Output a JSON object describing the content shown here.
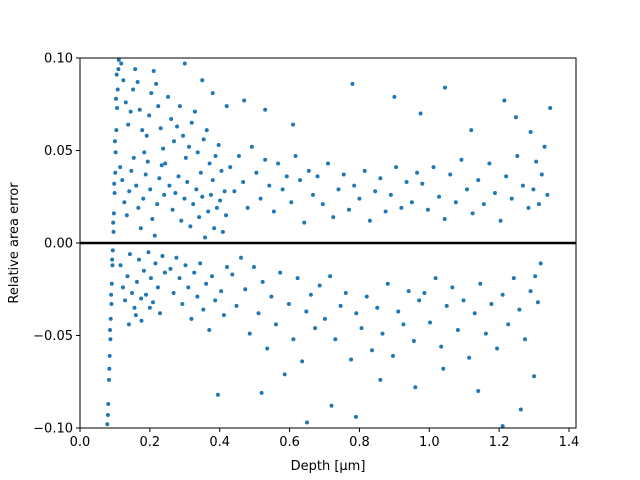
{
  "chart_data": {
    "type": "scatter",
    "xlabel": "Depth [µm]",
    "ylabel": "Relative area error",
    "xlim": [
      0.0,
      1.42
    ],
    "ylim": [
      -0.1,
      0.1
    ],
    "xticks": [
      "0.0",
      "0.2",
      "0.4",
      "0.6",
      "0.8",
      "1.0",
      "1.2",
      "1.4"
    ],
    "yticks": [
      "−0.10",
      "−0.05",
      "0.00",
      "0.05",
      "0.10"
    ],
    "reference_line": {
      "y": 0.0,
      "color": "#000000"
    },
    "point_color": "#1f77b4",
    "grid": false,
    "legend": "none",
    "series": [
      {
        "points": [
          [
            0.078,
            -0.098
          ],
          [
            0.081,
            -0.087
          ],
          [
            0.083,
            -0.074
          ],
          [
            0.085,
            -0.061
          ],
          [
            0.087,
            -0.052
          ],
          [
            0.088,
            -0.041
          ],
          [
            0.09,
            -0.033
          ],
          [
            0.091,
            -0.022
          ],
          [
            0.093,
            -0.012
          ],
          [
            0.094,
            -0.004
          ],
          [
            0.096,
            0.006
          ],
          [
            0.097,
            0.016
          ],
          [
            0.099,
            0.027
          ],
          [
            0.101,
            0.038
          ],
          [
            0.102,
            0.049
          ],
          [
            0.104,
            0.061
          ],
          [
            0.106,
            0.073
          ],
          [
            0.108,
            0.083
          ],
          [
            0.11,
            0.094
          ],
          [
            0.111,
            0.099
          ],
          [
            0.08,
            -0.093
          ],
          [
            0.084,
            -0.068
          ],
          [
            0.086,
            -0.047
          ],
          [
            0.089,
            -0.028
          ],
          [
            0.092,
            -0.009
          ],
          [
            0.095,
            0.011
          ],
          [
            0.098,
            0.032
          ],
          [
            0.1,
            0.055
          ],
          [
            0.103,
            0.078
          ],
          [
            0.105,
            0.091
          ],
          [
            0.118,
            0.097
          ],
          [
            0.124,
            0.088
          ],
          [
            0.131,
            0.076
          ],
          [
            0.138,
            0.064
          ],
          [
            0.145,
            0.071
          ],
          [
            0.152,
            0.083
          ],
          [
            0.158,
            0.094
          ],
          [
            0.165,
            0.087
          ],
          [
            0.171,
            0.072
          ],
          [
            0.178,
            0.061
          ],
          [
            0.184,
            0.049
          ],
          [
            0.191,
            0.058
          ],
          [
            0.198,
            0.069
          ],
          [
            0.204,
            0.081
          ],
          [
            0.211,
            0.093
          ],
          [
            0.218,
            0.086
          ],
          [
            0.224,
            0.074
          ],
          [
            0.231,
            0.062
          ],
          [
            0.238,
            0.051
          ],
          [
            0.244,
            0.043
          ],
          [
            0.115,
            0.041
          ],
          [
            0.121,
            0.034
          ],
          [
            0.127,
            0.022
          ],
          [
            0.134,
            0.015
          ],
          [
            0.141,
            0.028
          ],
          [
            0.147,
            0.039
          ],
          [
            0.154,
            0.046
          ],
          [
            0.161,
            0.031
          ],
          [
            0.167,
            0.019
          ],
          [
            0.174,
            0.008
          ],
          [
            0.181,
            0.024
          ],
          [
            0.188,
            0.037
          ],
          [
            0.194,
            0.044
          ],
          [
            0.201,
            0.029
          ],
          [
            0.207,
            0.013
          ],
          [
            0.214,
            0.004
          ],
          [
            0.221,
            0.021
          ],
          [
            0.227,
            0.035
          ],
          [
            0.234,
            0.042
          ],
          [
            0.241,
            0.026
          ],
          [
            0.116,
            -0.012
          ],
          [
            0.123,
            -0.024
          ],
          [
            0.129,
            -0.031
          ],
          [
            0.136,
            -0.018
          ],
          [
            0.143,
            -0.006
          ],
          [
            0.149,
            -0.027
          ],
          [
            0.156,
            -0.035
          ],
          [
            0.163,
            -0.021
          ],
          [
            0.169,
            -0.009
          ],
          [
            0.176,
            -0.042
          ],
          [
            0.183,
            -0.015
          ],
          [
            0.189,
            -0.028
          ],
          [
            0.196,
            -0.005
          ],
          [
            0.203,
            -0.019
          ],
          [
            0.209,
            -0.032
          ],
          [
            0.216,
            -0.011
          ],
          [
            0.223,
            -0.024
          ],
          [
            0.229,
            -0.038
          ],
          [
            0.236,
            -0.007
          ],
          [
            0.243,
            -0.016
          ],
          [
            0.252,
            0.079
          ],
          [
            0.261,
            0.067
          ],
          [
            0.269,
            0.055
          ],
          [
            0.278,
            0.063
          ],
          [
            0.286,
            0.074
          ],
          [
            0.295,
            0.058
          ],
          [
            0.303,
            0.046
          ],
          [
            0.312,
            0.052
          ],
          [
            0.32,
            0.065
          ],
          [
            0.329,
            0.071
          ],
          [
            0.337,
            0.049
          ],
          [
            0.346,
            0.038
          ],
          [
            0.354,
            0.056
          ],
          [
            0.363,
            0.061
          ],
          [
            0.371,
            0.043
          ],
          [
            0.38,
            0.034
          ],
          [
            0.388,
            0.047
          ],
          [
            0.397,
            0.053
          ],
          [
            0.405,
            0.039
          ],
          [
            0.414,
            0.028
          ],
          [
            0.256,
            0.031
          ],
          [
            0.265,
            0.018
          ],
          [
            0.273,
            0.027
          ],
          [
            0.282,
            0.036
          ],
          [
            0.29,
            0.012
          ],
          [
            0.299,
            0.024
          ],
          [
            0.307,
            0.033
          ],
          [
            0.316,
            0.009
          ],
          [
            0.324,
            0.021
          ],
          [
            0.333,
            0.029
          ],
          [
            0.341,
            0.014
          ],
          [
            0.35,
            0.025
          ],
          [
            0.358,
            0.003
          ],
          [
            0.367,
            0.017
          ],
          [
            0.375,
            0.026
          ],
          [
            0.384,
            0.008
          ],
          [
            0.392,
            0.019
          ],
          [
            0.401,
            0.023
          ],
          [
            0.409,
            0.006
          ],
          [
            0.418,
            0.015
          ],
          [
            0.259,
            -0.014
          ],
          [
            0.268,
            -0.027
          ],
          [
            0.276,
            -0.008
          ],
          [
            0.285,
            -0.019
          ],
          [
            0.293,
            -0.033
          ],
          [
            0.302,
            -0.012
          ],
          [
            0.31,
            -0.024
          ],
          [
            0.319,
            -0.041
          ],
          [
            0.327,
            -0.016
          ],
          [
            0.336,
            -0.029
          ],
          [
            0.344,
            -0.011
          ],
          [
            0.353,
            -0.036
          ],
          [
            0.361,
            -0.022
          ],
          [
            0.37,
            -0.047
          ],
          [
            0.378,
            -0.018
          ],
          [
            0.387,
            -0.031
          ],
          [
            0.395,
            -0.082
          ],
          [
            0.404,
            -0.026
          ],
          [
            0.412,
            -0.039
          ],
          [
            0.421,
            -0.013
          ],
          [
            0.43,
            0.041
          ],
          [
            0.442,
            0.028
          ],
          [
            0.455,
            0.047
          ],
          [
            0.467,
            0.033
          ],
          [
            0.48,
            0.019
          ],
          [
            0.492,
            0.052
          ],
          [
            0.505,
            0.038
          ],
          [
            0.517,
            0.024
          ],
          [
            0.53,
            0.045
          ],
          [
            0.542,
            0.031
          ],
          [
            0.555,
            0.017
          ],
          [
            0.567,
            0.043
          ],
          [
            0.58,
            0.029
          ],
          [
            0.592,
            0.036
          ],
          [
            0.605,
            0.022
          ],
          [
            0.617,
            0.047
          ],
          [
            0.63,
            0.034
          ],
          [
            0.642,
            0.011
          ],
          [
            0.655,
            0.039
          ],
          [
            0.667,
            0.026
          ],
          [
            0.436,
            -0.017
          ],
          [
            0.448,
            -0.034
          ],
          [
            0.461,
            -0.008
          ],
          [
            0.473,
            -0.025
          ],
          [
            0.486,
            -0.049
          ],
          [
            0.498,
            -0.013
          ],
          [
            0.511,
            -0.038
          ],
          [
            0.523,
            -0.021
          ],
          [
            0.536,
            -0.057
          ],
          [
            0.548,
            -0.029
          ],
          [
            0.561,
            -0.044
          ],
          [
            0.573,
            -0.016
          ],
          [
            0.586,
            -0.071
          ],
          [
            0.598,
            -0.033
          ],
          [
            0.611,
            -0.052
          ],
          [
            0.623,
            -0.019
          ],
          [
            0.636,
            -0.064
          ],
          [
            0.648,
            -0.037
          ],
          [
            0.661,
            -0.028
          ],
          [
            0.673,
            -0.046
          ],
          [
            0.68,
            0.036
          ],
          [
            0.695,
            0.021
          ],
          [
            0.71,
            0.043
          ],
          [
            0.725,
            0.014
          ],
          [
            0.74,
            0.029
          ],
          [
            0.755,
            0.037
          ],
          [
            0.77,
            0.018
          ],
          [
            0.785,
            0.031
          ],
          [
            0.8,
            0.024
          ],
          [
            0.815,
            0.039
          ],
          [
            0.83,
            0.012
          ],
          [
            0.845,
            0.028
          ],
          [
            0.86,
            0.035
          ],
          [
            0.875,
            0.017
          ],
          [
            0.89,
            0.026
          ],
          [
            0.905,
            0.041
          ],
          [
            0.92,
            0.019
          ],
          [
            0.935,
            0.033
          ],
          [
            0.95,
            0.022
          ],
          [
            0.965,
            0.038
          ],
          [
            0.686,
            -0.023
          ],
          [
            0.701,
            -0.041
          ],
          [
            0.716,
            -0.018
          ],
          [
            0.731,
            -0.052
          ],
          [
            0.746,
            -0.034
          ],
          [
            0.761,
            -0.027
          ],
          [
            0.776,
            -0.063
          ],
          [
            0.791,
            -0.038
          ],
          [
            0.806,
            -0.046
          ],
          [
            0.821,
            -0.029
          ],
          [
            0.836,
            -0.058
          ],
          [
            0.851,
            -0.035
          ],
          [
            0.866,
            -0.049
          ],
          [
            0.881,
            -0.022
          ],
          [
            0.896,
            -0.061
          ],
          [
            0.911,
            -0.037
          ],
          [
            0.926,
            -0.044
          ],
          [
            0.941,
            -0.026
          ],
          [
            0.956,
            -0.053
          ],
          [
            0.971,
            -0.031
          ],
          [
            0.98,
            0.032
          ],
          [
            0.996,
            0.018
          ],
          [
            1.012,
            0.041
          ],
          [
            1.028,
            0.025
          ],
          [
            1.044,
            0.013
          ],
          [
            1.06,
            0.037
          ],
          [
            1.076,
            0.022
          ],
          [
            1.092,
            0.045
          ],
          [
            1.108,
            0.029
          ],
          [
            1.124,
            0.016
          ],
          [
            1.14,
            0.034
          ],
          [
            1.156,
            0.021
          ],
          [
            1.172,
            0.043
          ],
          [
            1.188,
            0.027
          ],
          [
            1.204,
            0.012
          ],
          [
            1.22,
            0.036
          ],
          [
            1.236,
            0.024
          ],
          [
            1.252,
            0.047
          ],
          [
            1.268,
            0.031
          ],
          [
            1.284,
            0.019
          ],
          [
            0.986,
            -0.027
          ],
          [
            1.002,
            -0.043
          ],
          [
            1.018,
            -0.019
          ],
          [
            1.034,
            -0.056
          ],
          [
            1.05,
            -0.034
          ],
          [
            1.066,
            -0.024
          ],
          [
            1.082,
            -0.047
          ],
          [
            1.098,
            -0.031
          ],
          [
            1.114,
            -0.062
          ],
          [
            1.13,
            -0.038
          ],
          [
            1.146,
            -0.022
          ],
          [
            1.162,
            -0.049
          ],
          [
            1.178,
            -0.033
          ],
          [
            1.194,
            -0.057
          ],
          [
            1.21,
            -0.028
          ],
          [
            1.226,
            -0.044
          ],
          [
            1.242,
            -0.019
          ],
          [
            1.258,
            -0.036
          ],
          [
            1.274,
            -0.052
          ],
          [
            1.29,
            -0.026
          ],
          [
            1.298,
            0.029
          ],
          [
            1.306,
            0.044
          ],
          [
            1.314,
            0.021
          ],
          [
            1.322,
            0.037
          ],
          [
            1.33,
            0.052
          ],
          [
            1.338,
            0.026
          ],
          [
            1.346,
            0.073
          ],
          [
            1.303,
            -0.018
          ],
          [
            1.311,
            -0.032
          ],
          [
            1.319,
            -0.011
          ],
          [
            0.3,
            0.097
          ],
          [
            0.35,
            0.088
          ],
          [
            0.38,
            0.081
          ],
          [
            0.42,
            0.074
          ],
          [
            0.47,
            0.077
          ],
          [
            0.53,
            0.072
          ],
          [
            0.61,
            0.064
          ],
          [
            0.78,
            0.086
          ],
          [
            0.9,
            0.079
          ],
          [
            0.975,
            0.07
          ],
          [
            1.045,
            0.084
          ],
          [
            1.12,
            0.061
          ],
          [
            1.215,
            0.077
          ],
          [
            1.248,
            0.068
          ],
          [
            1.29,
            0.06
          ],
          [
            0.52,
            -0.081
          ],
          [
            0.65,
            -0.097
          ],
          [
            0.72,
            -0.088
          ],
          [
            0.79,
            -0.094
          ],
          [
            0.86,
            -0.074
          ],
          [
            0.96,
            -0.078
          ],
          [
            1.04,
            -0.068
          ],
          [
            1.14,
            -0.08
          ],
          [
            1.21,
            -0.099
          ],
          [
            1.262,
            -0.09
          ],
          [
            1.3,
            -0.072
          ],
          [
            0.14,
            -0.044
          ],
          [
            0.16,
            -0.039
          ],
          [
            0.175,
            -0.03
          ],
          [
            0.2,
            -0.035
          ]
        ]
      }
    ]
  }
}
